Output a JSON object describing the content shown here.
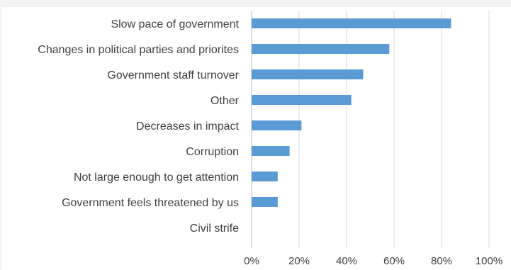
{
  "chart_data": {
    "type": "bar",
    "orientation": "horizontal",
    "title": "",
    "xlabel": "",
    "ylabel": "",
    "categories": [
      "Slow pace of government",
      "Changes in political parties and priorites",
      "Government staff turnover",
      "Other",
      "Decreases in impact",
      "Corruption",
      "Not large enough to get attention",
      "Government feels threatened by us",
      "Civil strife"
    ],
    "values": [
      84,
      58,
      47,
      42,
      21,
      16,
      11,
      11,
      0
    ],
    "value_unit": "%",
    "xlim": [
      0,
      100
    ],
    "x_ticks": [
      0,
      20,
      40,
      60,
      80,
      100
    ],
    "x_tick_labels": [
      "0%",
      "20%",
      "40%",
      "60%",
      "80%",
      "100%"
    ],
    "grid": true,
    "legend": "none",
    "bar_color": "#5b9bd5",
    "grid_color": "#d9d9d9",
    "text_color": "#404040"
  }
}
